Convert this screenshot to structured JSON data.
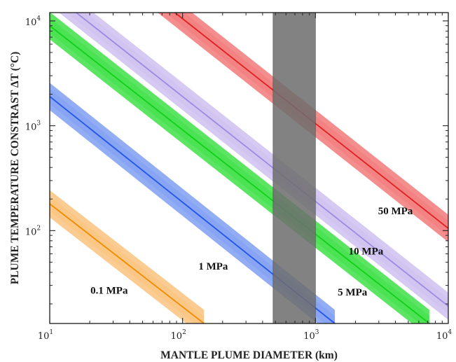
{
  "chart_data": {
    "type": "line",
    "xlabel": "MANTLE PLUME DIAMETER (km)",
    "ylabel": "PLUME TEMPERATURE CONSTRAST  ΔT (°C)",
    "xscale": "log",
    "yscale": "log",
    "xlim": [
      10,
      10000
    ],
    "ylim": [
      13,
      12000
    ],
    "x_ticks": [
      {
        "value": 10,
        "base": "10",
        "exp": "1"
      },
      {
        "value": 100,
        "base": "10",
        "exp": "2"
      },
      {
        "value": 1000,
        "base": "10",
        "exp": "3"
      },
      {
        "value": 10000,
        "base": "10",
        "exp": "4"
      }
    ],
    "y_ticks": [
      {
        "value": 100,
        "base": "10",
        "exp": "2"
      },
      {
        "value": 1000,
        "base": "10",
        "exp": "3"
      },
      {
        "value": 10000,
        "base": "10",
        "exp": "4"
      }
    ],
    "grid": false,
    "shaded_region": {
      "x": [
        480,
        1000
      ],
      "color": "#6e6e6e"
    },
    "series": [
      {
        "name": "0.1 MPa",
        "color": "#f08c00",
        "band_color": "#f9c37e",
        "x": [
          10,
          145
        ],
        "y": [
          180,
          13
        ],
        "band_width_log": 0.13
      },
      {
        "name": "1 MPa",
        "color": "#2355e8",
        "band_color": "#7f9ff2",
        "x": [
          10,
          1400
        ],
        "y": [
          1900,
          13
        ],
        "band_width_log": 0.13
      },
      {
        "name": "5 MPa",
        "color": "#12d018",
        "band_color": "#3ee048",
        "x": [
          10,
          7200
        ],
        "y": [
          9000,
          13
        ],
        "band_width_log": 0.13
      },
      {
        "name": "10 MPa",
        "color": "#9b8be0",
        "band_color": "#cfbff0",
        "x": [
          10,
          10000
        ],
        "y": [
          19000,
          19
        ],
        "band_width_log": 0.13
      },
      {
        "name": "50 MPa",
        "color": "#e02020",
        "band_color": "#f27a7a",
        "x": [
          10,
          10000
        ],
        "y": [
          105000,
          105
        ],
        "band_width_log": 0.13
      }
    ],
    "annotations": [
      {
        "text": "0.1 MPa",
        "x": 28,
        "y": 27
      },
      {
        "text": "1 MPa",
        "x": 170,
        "y": 46
      },
      {
        "text": "5 MPa",
        "x": 1900,
        "y": 26
      },
      {
        "text": "10 MPa",
        "x": 2400,
        "y": 64
      },
      {
        "text": "50 MPa",
        "x": 4000,
        "y": 155
      }
    ]
  }
}
